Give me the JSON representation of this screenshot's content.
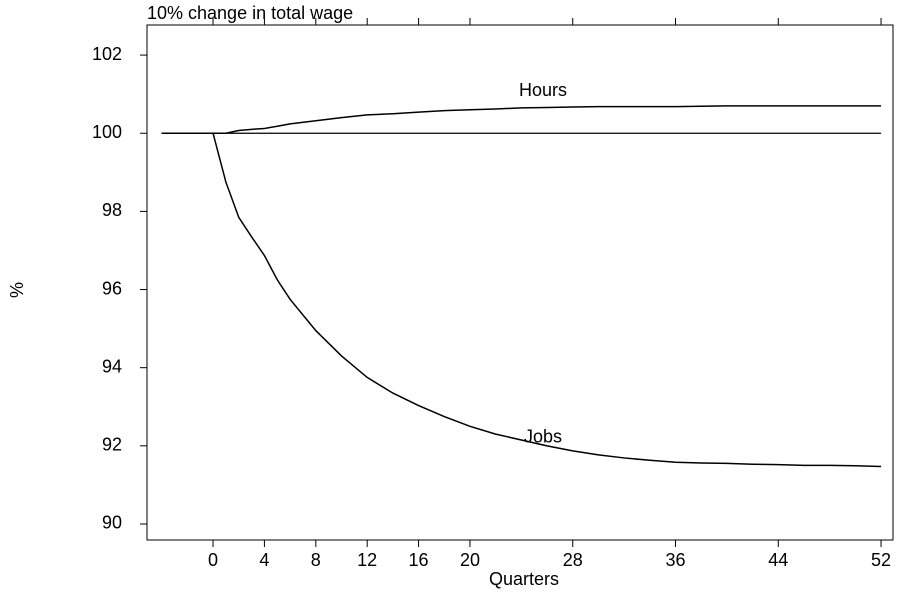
{
  "chart_data": {
    "type": "line",
    "title": "10% change in total wage",
    "x_label": "Quarters",
    "y_label": "%",
    "x": [
      -4,
      -2,
      0,
      1,
      2,
      3,
      4,
      5,
      6,
      8,
      10,
      12,
      14,
      16,
      18,
      20,
      22,
      24,
      26,
      28,
      30,
      32,
      34,
      36,
      38,
      40,
      42,
      44,
      46,
      48,
      50,
      52
    ],
    "series": [
      {
        "name": "Hours",
        "color": "#000000",
        "values": [
          100,
          100,
          100,
          100,
          100.07,
          100.1,
          100.12,
          100.18,
          100.24,
          100.32,
          100.4,
          100.47,
          100.5,
          100.54,
          100.58,
          100.6,
          100.62,
          100.65,
          100.66,
          100.67,
          100.68,
          100.68,
          100.68,
          100.68,
          100.69,
          100.7,
          100.7,
          100.7,
          100.7,
          100.7,
          100.7,
          100.7
        ]
      },
      {
        "name": "Jobs",
        "color": "#000000",
        "values": [
          100,
          100,
          100,
          98.75,
          97.85,
          97.35,
          96.87,
          96.25,
          95.75,
          94.95,
          94.3,
          93.75,
          93.35,
          93.03,
          92.75,
          92.5,
          92.3,
          92.15,
          92.0,
          91.87,
          91.77,
          91.69,
          91.63,
          91.58,
          91.56,
          91.55,
          91.53,
          91.52,
          91.5,
          91.5,
          91.49,
          91.47
        ]
      }
    ],
    "reference_line": 100,
    "xlim": [
      -5.14,
      52.93
    ],
    "ylim": [
      89.59,
      102.77
    ],
    "xticks": [
      0,
      4,
      8,
      12,
      16,
      20,
      28,
      36,
      44,
      52
    ],
    "top_xticks": [
      0,
      4,
      8,
      12,
      16,
      20,
      28,
      36,
      44,
      52
    ],
    "yticks": [
      90,
      92,
      94,
      96,
      98,
      100,
      102
    ],
    "grid": false
  }
}
